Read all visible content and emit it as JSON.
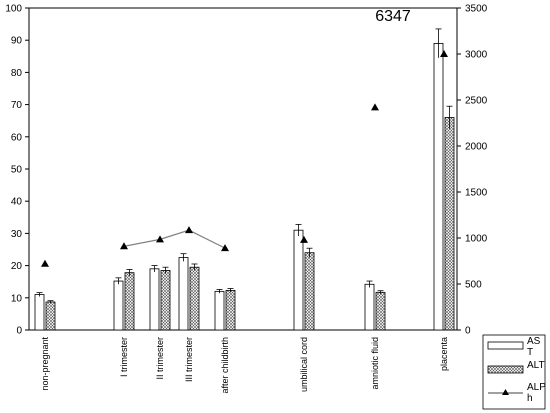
{
  "chart_data": {
    "type": "bar",
    "annotation": "6347",
    "categories": [
      "non-pregnant",
      "I trimester",
      "II trimester",
      "III trimester",
      "after childbirth",
      "umbilical cord",
      "amniotic fluid",
      "placenta"
    ],
    "series": [
      {
        "name": "AST",
        "label_lines": [
          "AS",
          "T"
        ],
        "axis": "left",
        "kind": "bar",
        "pattern": "white",
        "values": [
          11,
          15.2,
          19,
          22.5,
          12,
          31,
          14.2,
          89
        ],
        "errors": [
          0.6,
          1,
          1,
          1.2,
          0.6,
          1.8,
          1,
          4.5
        ]
      },
      {
        "name": "ALT",
        "label_lines": [
          "ALT"
        ],
        "axis": "left",
        "kind": "bar",
        "pattern": "crosshatch",
        "values": [
          8.7,
          17.8,
          18.5,
          19.5,
          12.3,
          24,
          11.7,
          66
        ],
        "errors": [
          0.4,
          1,
          1,
          1,
          0.6,
          1.4,
          0.5,
          3.5
        ]
      },
      {
        "name": "ALPh",
        "label_lines": [
          "ALP",
          "h"
        ],
        "axis": "right",
        "kind": "line-marker",
        "values": [
          720,
          910,
          985,
          1085,
          890,
          980,
          2420,
          3000
        ],
        "connected": [
          [
            1,
            2,
            3,
            4
          ]
        ]
      }
    ],
    "left_axis": {
      "min": 0,
      "max": 100,
      "ticks": [
        0,
        10,
        20,
        30,
        40,
        50,
        60,
        70,
        80,
        90,
        100
      ]
    },
    "right_axis": {
      "min": 0,
      "max": 3500,
      "ticks": [
        0,
        500,
        1000,
        1500,
        2000,
        2500,
        3000,
        3500
      ]
    },
    "xlabel": "",
    "ylabel": "",
    "grid": false,
    "legend_position": "bottom-right"
  }
}
